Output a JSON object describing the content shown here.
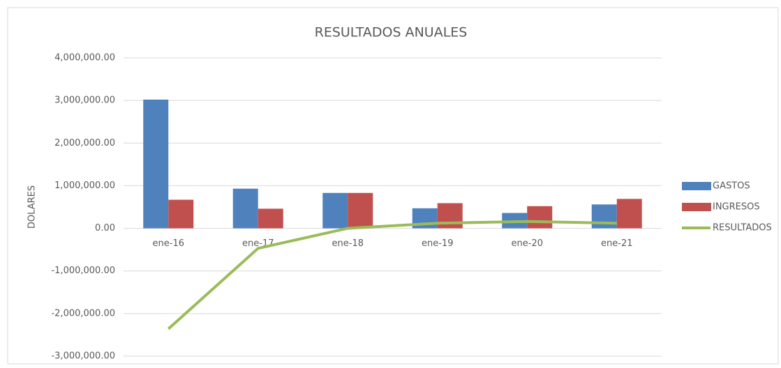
{
  "chart_data": {
    "type": "bar-line",
    "title": "RESULTADOS ANUALES",
    "y_label": "DOLARES",
    "categories": [
      "ene-16",
      "ene-17",
      "ene-18",
      "ene-19",
      "ene-20",
      "ene-21"
    ],
    "series": [
      {
        "name": "GASTOS",
        "type": "bar",
        "color": "#4f81bd",
        "values": [
          3020000,
          930000,
          830000,
          470000,
          360000,
          560000
        ]
      },
      {
        "name": "INGRESOS",
        "type": "bar",
        "color": "#c0504d",
        "values": [
          670000,
          460000,
          830000,
          590000,
          520000,
          690000
        ]
      },
      {
        "name": "RESULTADOS",
        "type": "line",
        "color": "#9bbb59",
        "values": [
          -2360000,
          -470000,
          0,
          120000,
          160000,
          120000
        ]
      }
    ],
    "ylim": [
      -3000000,
      4000000
    ],
    "yticks": [
      {
        "value": -3000000,
        "label": "-3,000,000.00"
      },
      {
        "value": -2000000,
        "label": "-2,000,000.00"
      },
      {
        "value": -1000000,
        "label": "-1,000,000.00"
      },
      {
        "value": 0,
        "label": "0.00"
      },
      {
        "value": 1000000,
        "label": "1,000,000.00"
      },
      {
        "value": 2000000,
        "label": "2,000,000.00"
      },
      {
        "value": 3000000,
        "label": "3,000,000.00"
      },
      {
        "value": 4000000,
        "label": "4,000,000.00"
      }
    ],
    "grid": true,
    "legend": "right"
  }
}
